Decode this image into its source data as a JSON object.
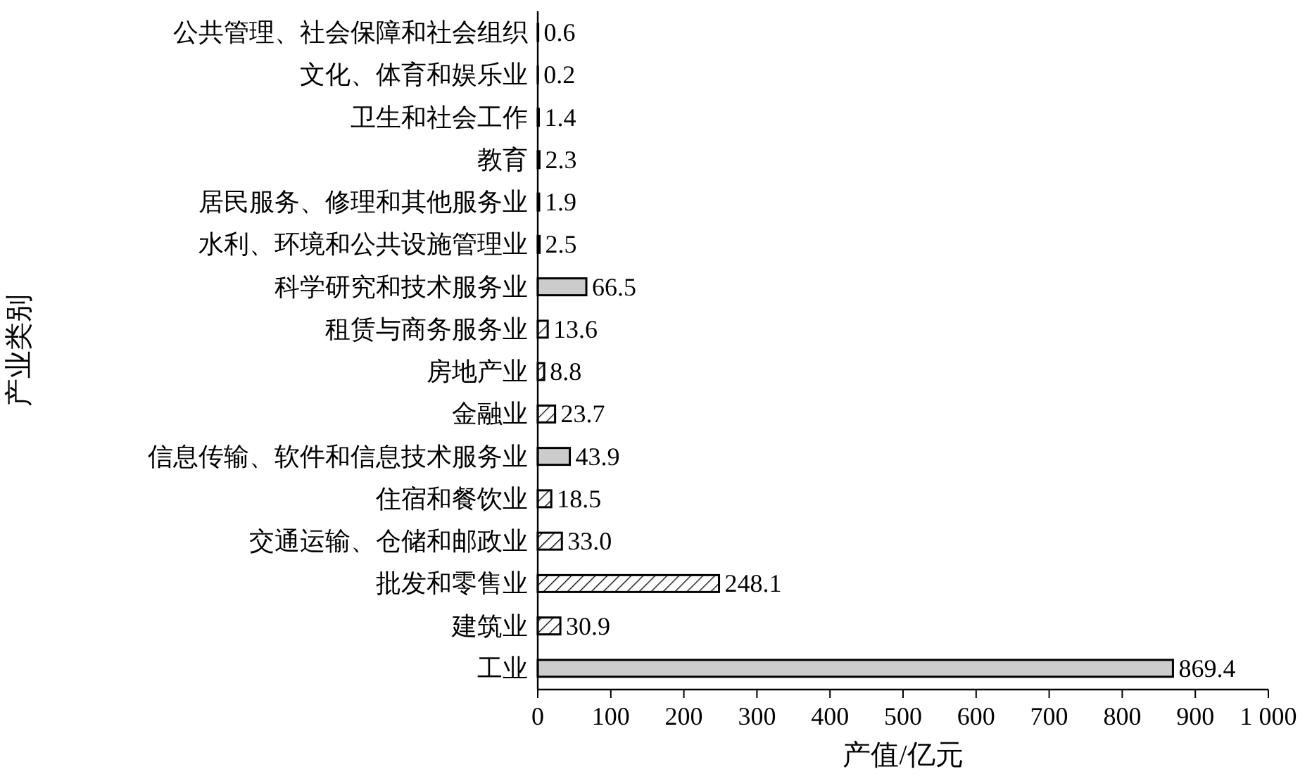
{
  "chart_data": {
    "type": "bar",
    "orientation": "horizontal",
    "xlabel": "产值/亿元",
    "ylabel": "产业类别",
    "categories": [
      "公共管理、社会保障和社会组织",
      "文化、体育和娱乐业",
      "卫生和社会工作",
      "教育",
      "居民服务、修理和其他服务业",
      "水利、环境和公共设施管理业",
      "科学研究和技术服务业",
      "租赁与商务服务业",
      "房地产业",
      "金融业",
      "信息传输、软件和信息技术服务业",
      "住宿和餐饮业",
      "交通运输、仓储和邮政业",
      "批发和零售业",
      "建筑业",
      "工业"
    ],
    "values": [
      0.6,
      0.2,
      1.4,
      2.3,
      1.9,
      2.5,
      66.5,
      13.6,
      8.8,
      23.7,
      43.9,
      18.5,
      33.0,
      248.1,
      30.9,
      869.4
    ],
    "value_labels": [
      "0.6",
      "0.2",
      "1.4",
      "2.3",
      "1.9",
      "2.5",
      "66.5",
      "13.6",
      "8.8",
      "23.7",
      "43.9",
      "18.5",
      "33.0",
      "248.1",
      "30.9",
      "869.4"
    ],
    "colors": [
      "#cccccc",
      "#cccccc",
      "#cccccc",
      "#000000",
      "#cccccc",
      "#cccccc",
      "#cccccc",
      "#000000",
      "#000000",
      "#000000",
      "#cccccc",
      "#000000",
      "#000000",
      "#000000",
      "#000000",
      "#cccccc"
    ],
    "xlim": [
      0,
      1000
    ],
    "xticks": [
      0,
      100,
      200,
      300,
      400,
      500,
      600,
      700,
      800,
      900,
      {
        "value": 1000,
        "label": "1 000"
      }
    ]
  }
}
